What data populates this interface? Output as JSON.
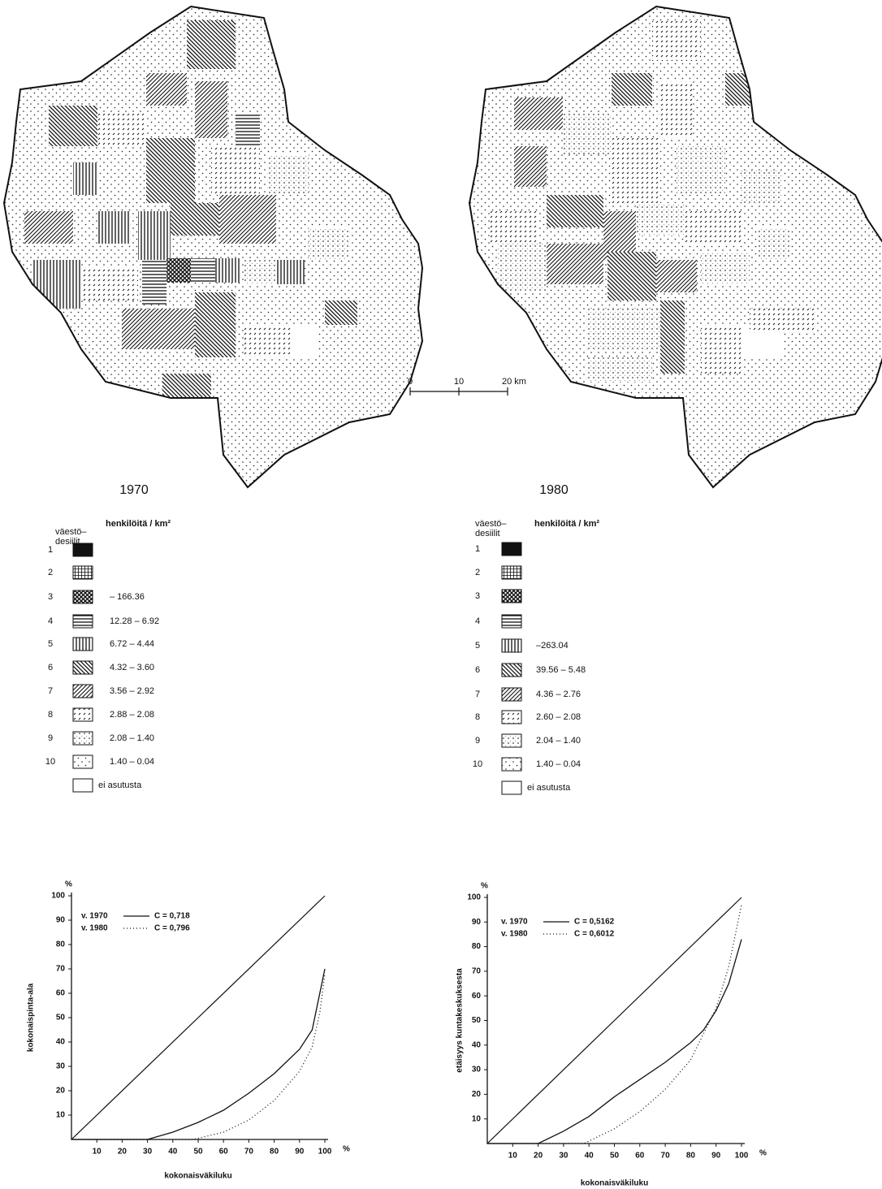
{
  "maps": [
    {
      "year": "1970"
    },
    {
      "year": "1980"
    }
  ],
  "scale_bar": {
    "ticks": [
      "0",
      "10",
      "20 km"
    ]
  },
  "legends": [
    {
      "deciles_label_1": "väestö–",
      "deciles_label_2": "desiilit",
      "density_label": "henkilöitä / km²",
      "rows": [
        {
          "decile": "1"
        },
        {
          "decile": "2"
        },
        {
          "decile": "3",
          "range": "– 166.36"
        },
        {
          "decile": "4",
          "range": "12.28 – 6.92"
        },
        {
          "decile": "5",
          "range": "6.72 – 4.44"
        },
        {
          "decile": "6",
          "range": "4.32 – 3.60"
        },
        {
          "decile": "7",
          "range": "3.56 – 2.92"
        },
        {
          "decile": "8",
          "range": "2.88 – 2.08"
        },
        {
          "decile": "9",
          "range": "2.08 – 1.40"
        },
        {
          "decile": "10",
          "range": "1.40 – 0.04"
        }
      ],
      "no_settlement": "ei asutusta"
    },
    {
      "deciles_label_1": "väestö–",
      "deciles_label_2": "desiilit",
      "density_label": "henkilöitä / km²",
      "rows": [
        {
          "decile": "1"
        },
        {
          "decile": "2"
        },
        {
          "decile": "3"
        },
        {
          "decile": "4"
        },
        {
          "decile": "5",
          "range": "–263.04"
        },
        {
          "decile": "6",
          "range": "39.56 – 5.48"
        },
        {
          "decile": "7",
          "range": "4.36 – 2.76"
        },
        {
          "decile": "8",
          "range": "2.60 – 2.08"
        },
        {
          "decile": "9",
          "range": "2.04 – 1.40"
        },
        {
          "decile": "10",
          "range": "1.40 – 0.04"
        }
      ],
      "no_settlement": "ei asutusta"
    }
  ],
  "chart_data": [
    {
      "type": "line",
      "x_label": "kokonaisväkiluku",
      "y_label": "kokonaispinta-ala",
      "x_unit": "%",
      "y_unit": "%",
      "xlim": [
        0,
        100
      ],
      "ylim": [
        0,
        100
      ],
      "xticks": [
        10,
        20,
        30,
        40,
        50,
        60,
        70,
        80,
        90,
        100
      ],
      "yticks": [
        10,
        20,
        30,
        40,
        50,
        60,
        70,
        80,
        90,
        100
      ],
      "reference_line": {
        "x": [
          0,
          100
        ],
        "values": [
          0,
          100
        ]
      },
      "series": [
        {
          "name": "v. 1970",
          "label": "C = 0,718",
          "color": "#111111",
          "dash": "solid",
          "x": [
            0,
            30,
            40,
            50,
            60,
            70,
            80,
            90,
            95,
            97,
            99,
            100
          ],
          "values": [
            0,
            0,
            3,
            7,
            12,
            19,
            27,
            37,
            45,
            55,
            65,
            70
          ]
        },
        {
          "name": "v. 1980",
          "label": "C = 0,796",
          "color": "#111111",
          "dash": "dotted",
          "x": [
            0,
            48,
            60,
            70,
            80,
            90,
            95,
            98,
            100
          ],
          "values": [
            0,
            0,
            3,
            8,
            16,
            28,
            38,
            52,
            68
          ]
        }
      ]
    },
    {
      "type": "line",
      "x_label": "kokonaisväkiluku",
      "y_label": "etäisyys kuntakeskuksesta",
      "x_unit": "%",
      "y_unit": "%",
      "xlim": [
        0,
        100
      ],
      "ylim": [
        0,
        100
      ],
      "xticks": [
        10,
        20,
        30,
        40,
        50,
        60,
        70,
        80,
        90,
        100
      ],
      "yticks": [
        10,
        20,
        30,
        40,
        50,
        60,
        70,
        80,
        90,
        100
      ],
      "reference_line": {
        "x": [
          0,
          100
        ],
        "values": [
          0,
          100
        ]
      },
      "series": [
        {
          "name": "v. 1970",
          "label": "C = 0,5162",
          "color": "#111111",
          "dash": "solid",
          "x": [
            0,
            20,
            30,
            40,
            50,
            60,
            70,
            80,
            85,
            90,
            95,
            100
          ],
          "values": [
            0,
            0,
            5,
            11,
            19,
            26,
            33,
            41,
            46,
            54,
            65,
            83
          ]
        },
        {
          "name": "v. 1980",
          "label": "C = 0,6012",
          "color": "#111111",
          "dash": "dotted",
          "x": [
            0,
            38,
            50,
            60,
            70,
            80,
            90,
            95,
            100
          ],
          "values": [
            0,
            0,
            6,
            13,
            22,
            34,
            55,
            72,
            97
          ]
        }
      ]
    }
  ]
}
